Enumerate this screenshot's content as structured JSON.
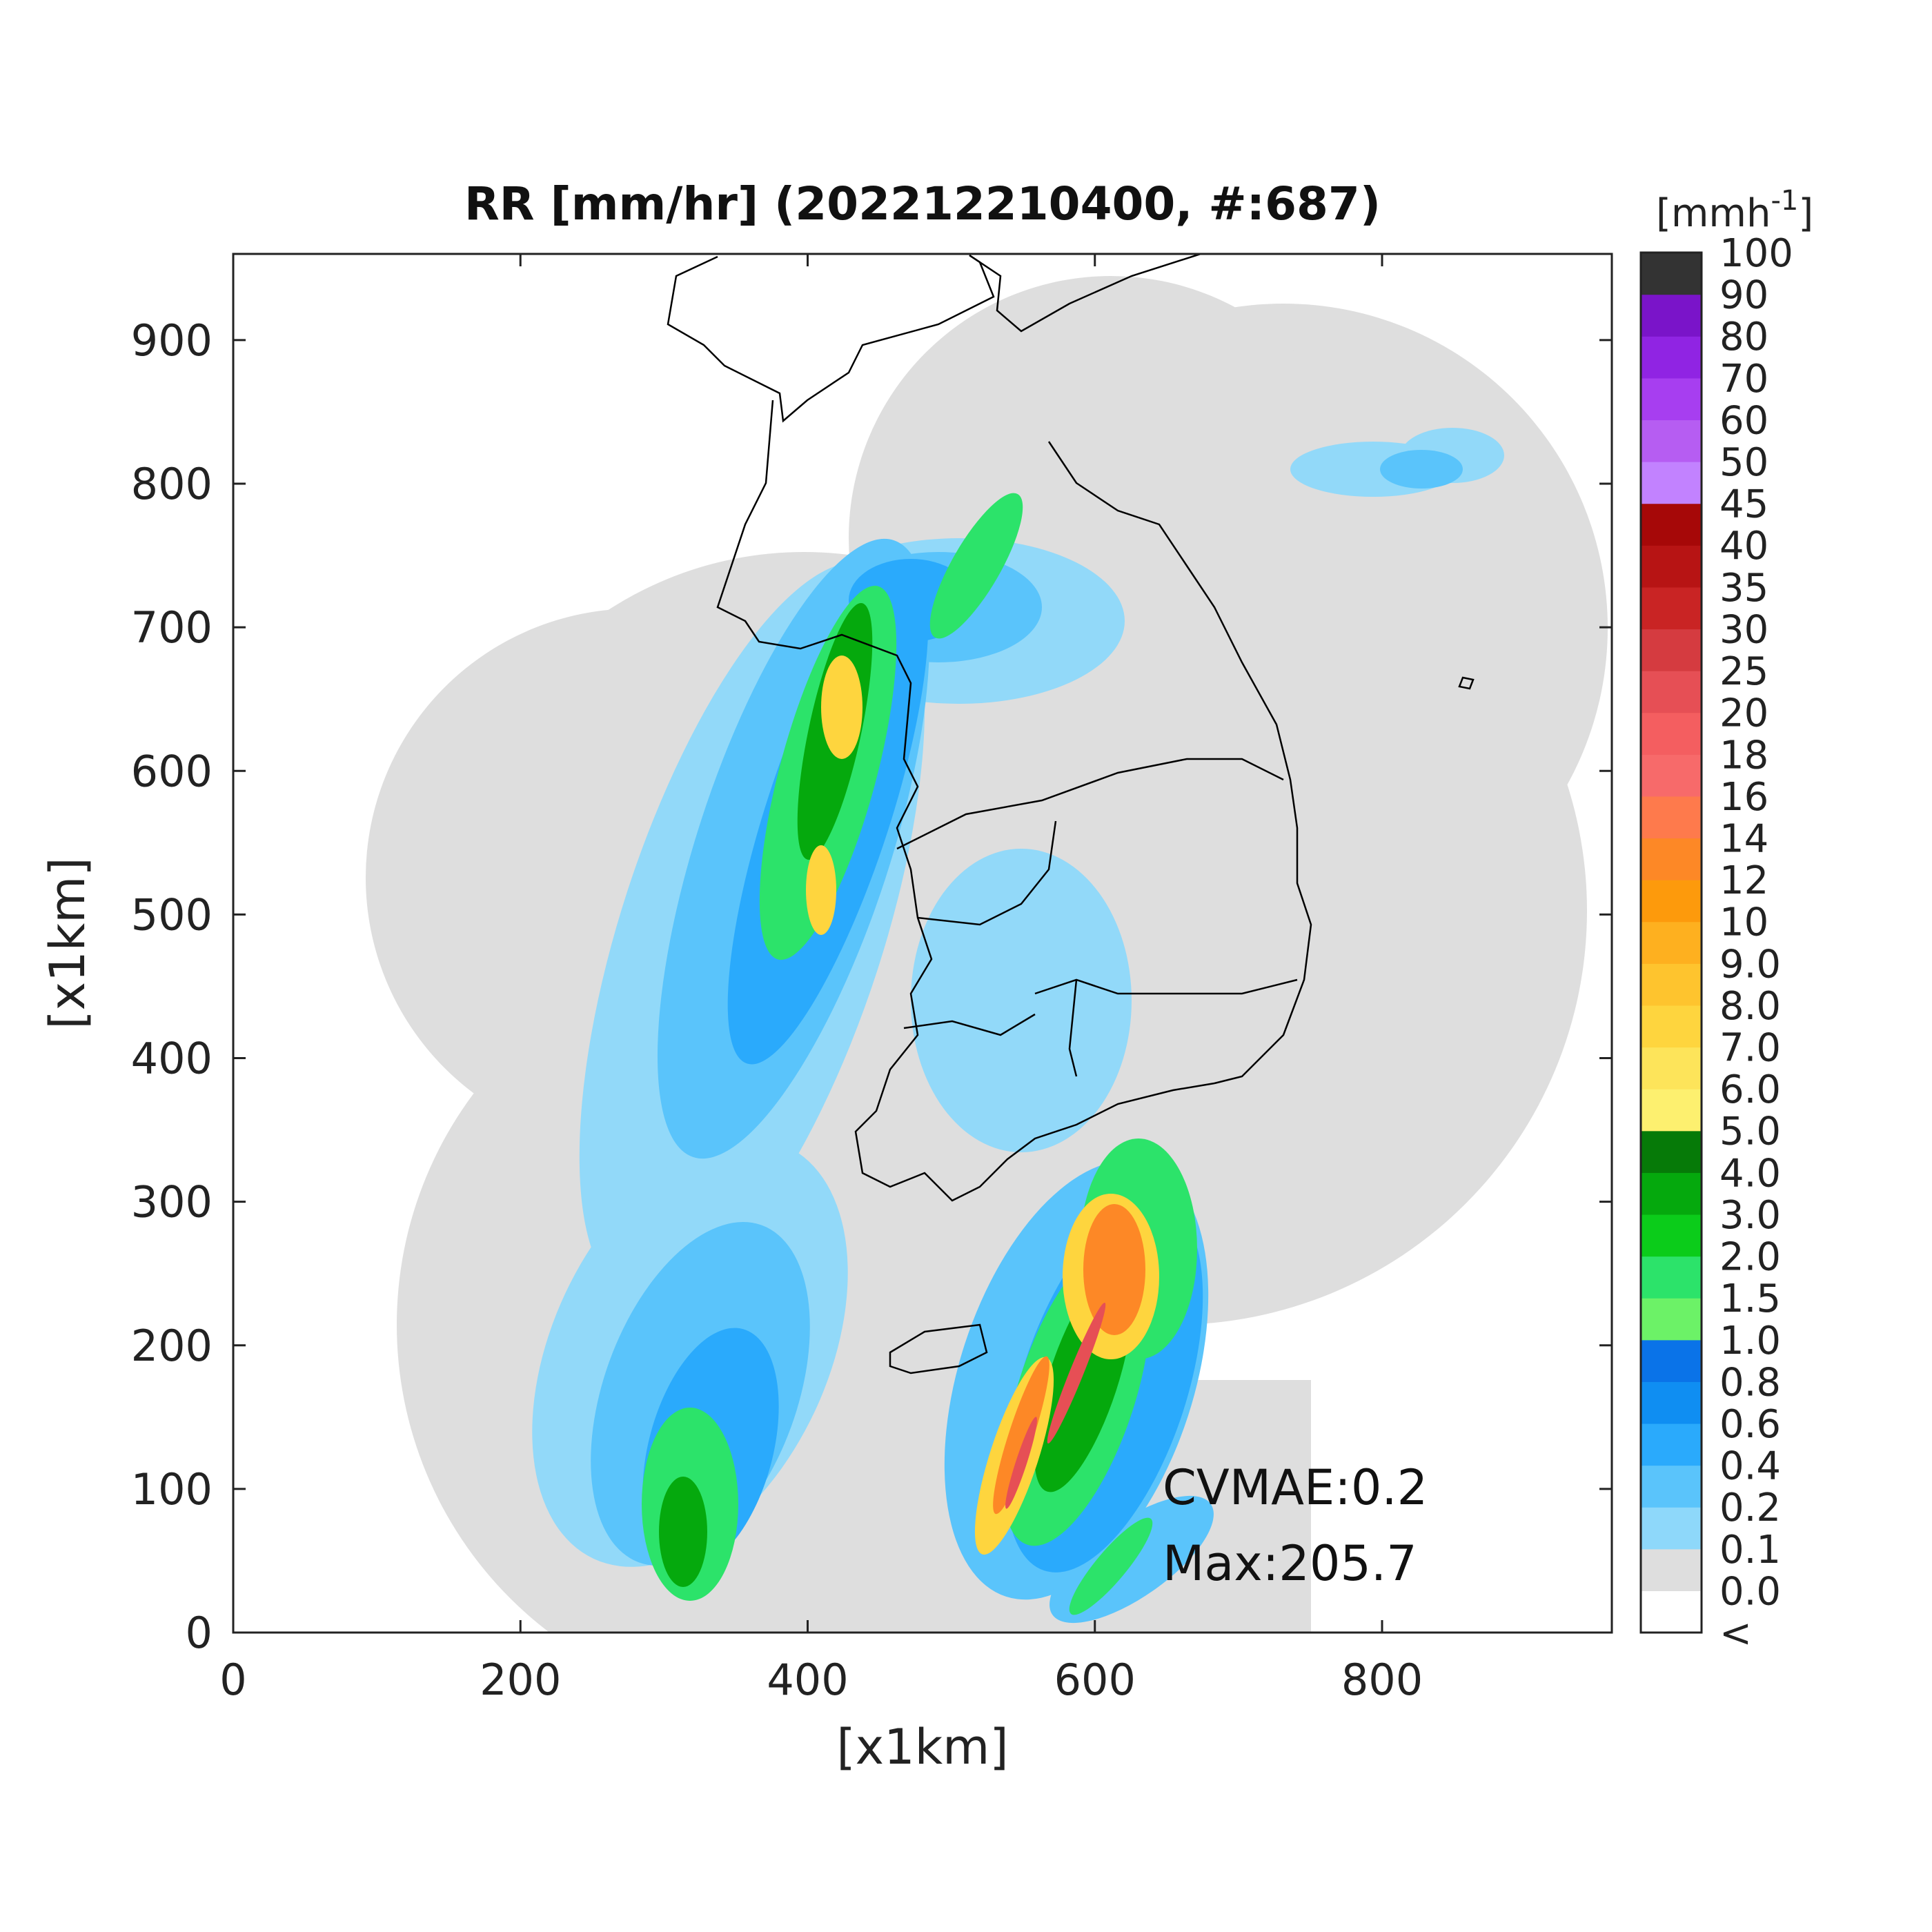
{
  "chart_data": {
    "type": "heatmap",
    "title": "RR [mm/hr] (202212210400, #:687)",
    "xlabel": "[x1km]",
    "ylabel": "[x1km]",
    "xlim": [
      0,
      960
    ],
    "ylim": [
      0,
      960
    ],
    "xticks": [
      "0",
      "200",
      "400",
      "600",
      "800"
    ],
    "xtick_values": [
      0,
      200,
      400,
      600,
      800
    ],
    "yticks": [
      "0",
      "100",
      "200",
      "300",
      "400",
      "500",
      "600",
      "700",
      "800",
      "900"
    ],
    "ytick_values": [
      0,
      100,
      200,
      300,
      400,
      500,
      600,
      700,
      800,
      900
    ],
    "colorbar": {
      "unit": "[mmh-1]",
      "unit_base": "[mmh",
      "unit_exp": "-1",
      "unit_close": "]",
      "labels": [
        "<",
        "0.0",
        "0.1",
        "0.2",
        "0.4",
        "0.6",
        "0.8",
        "1.0",
        "1.5",
        "2.0",
        "3.0",
        "4.0",
        "5.0",
        "6.0",
        "7.0",
        "8.0",
        "9.0",
        "10",
        "12",
        "14",
        "16",
        "18",
        "20",
        "25",
        "30",
        "35",
        "40",
        "45",
        "50",
        "60",
        "70",
        "80",
        "90",
        "100"
      ],
      "colors": [
        "#ffffff",
        "#dedede",
        "#8ed8fa",
        "#5ac4fb",
        "#2aaafc",
        "#0f8ef2",
        "#0a73e8",
        "#6cf267",
        "#2ce36a",
        "#0bcc1a",
        "#05a90d",
        "#067a08",
        "#fdf06f",
        "#fde45a",
        "#fed53e",
        "#fec42e",
        "#feb01f",
        "#fd9a0c",
        "#fd8826",
        "#fe7a4c",
        "#f76a6a",
        "#f45e60",
        "#e64f55",
        "#d53b40",
        "#c92424",
        "#b71414",
        "#a60808",
        "#c282ff",
        "#b65df2",
        "#a73ef0",
        "#9024e3",
        "#7a14c9",
        "#333333"
      ]
    },
    "annotations": [
      "CVMAE:0.2",
      "Max:205.7"
    ]
  }
}
